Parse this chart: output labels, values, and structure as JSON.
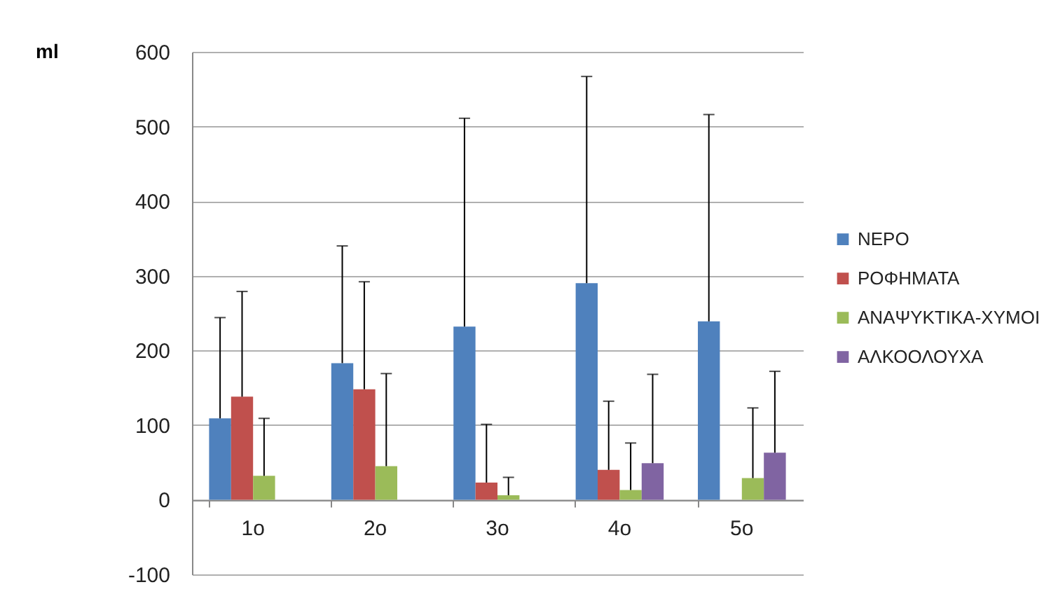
{
  "chart_data": {
    "type": "bar",
    "ylabel": "ml",
    "categories": [
      "1o",
      "2o",
      "3o",
      "4o",
      "5o"
    ],
    "series": [
      {
        "name": "ΝΕΡΟ",
        "color": "#4f81bd",
        "values": [
          109,
          183,
          232,
          290,
          239
        ],
        "errors": [
          [
            109,
            244
          ],
          [
            183,
            340
          ],
          [
            232,
            511
          ],
          [
            290,
            567
          ],
          [
            239,
            516
          ]
        ]
      },
      {
        "name": "ΡΟΦΗΜΑΤΑ",
        "color": "#c0504d",
        "values": [
          138,
          148,
          23,
          40,
          null
        ],
        "errors": [
          [
            138,
            279
          ],
          [
            148,
            292
          ],
          [
            23,
            101
          ],
          [
            40,
            132
          ],
          null
        ]
      },
      {
        "name": "ΑΝΑΨΥΚΤΙΚΑ-ΧΥΜΟΙ",
        "color": "#9bbb59",
        "values": [
          32,
          45,
          6,
          13,
          29
        ],
        "errors": [
          [
            32,
            109
          ],
          [
            45,
            169
          ],
          [
            6,
            30
          ],
          [
            13,
            76
          ],
          [
            29,
            123
          ]
        ]
      },
      {
        "name": "ΑΛΚΟΟΛΟΥΧΑ",
        "color": "#8064a2",
        "values": [
          null,
          null,
          null,
          49,
          63
        ],
        "errors": [
          null,
          null,
          null,
          [
            49,
            168
          ],
          [
            63,
            172
          ]
        ]
      }
    ],
    "ylim": [
      -100,
      600
    ],
    "yticks": [
      -100,
      0,
      100,
      200,
      300,
      400,
      500,
      600
    ],
    "grid": "y",
    "legend": "right"
  }
}
